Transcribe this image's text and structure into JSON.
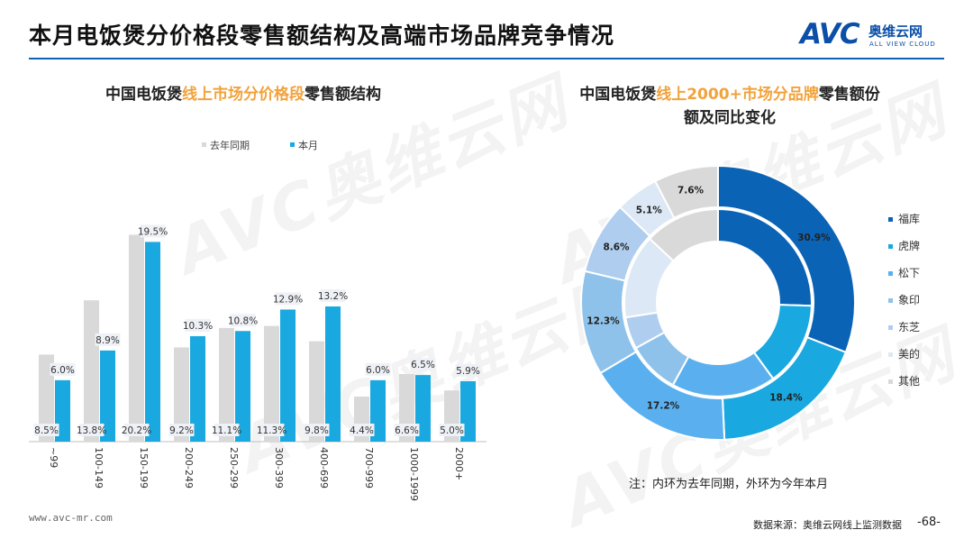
{
  "slide": {
    "title": "本月电饭煲分价格段零售额结构及高端市场品牌竞争情况",
    "logo_text": "AVC",
    "logo_cn": "奥维云网",
    "logo_en": "ALL VIEW CLOUD",
    "footer_url": "www.avc-mr.com",
    "footer_source": "数据来源：奥维云网线上监测数据",
    "page": "-68-",
    "watermark_text": "AVC奥维云网",
    "accent_color": "#0b63b6",
    "highlight_color": "#f2a23a"
  },
  "chart_data": [
    {
      "type": "bar",
      "title_pre": "中国电饭煲",
      "title_hl": "线上市场分价格段",
      "title_post": "零售额结构",
      "categories": [
        "~99",
        "100-149",
        "150-199",
        "200-249",
        "250-299",
        "300-399",
        "400-699",
        "700-999",
        "1000-1999",
        "2000+"
      ],
      "series": [
        {
          "name": "去年同期",
          "color": "#d9d9d9",
          "values": [
            8.5,
            13.8,
            20.2,
            9.2,
            11.1,
            11.3,
            9.8,
            4.4,
            6.6,
            5.0
          ]
        },
        {
          "name": "本月",
          "color": "#1aa8e0",
          "values": [
            6.0,
            8.9,
            19.5,
            10.3,
            10.8,
            12.9,
            13.2,
            6.0,
            6.5,
            5.9
          ]
        }
      ],
      "unit": "%",
      "ylim": [
        0,
        22
      ],
      "legend_position": "top-left"
    },
    {
      "type": "pie",
      "variant": "donut",
      "title_line1_pre": "中国电饭煲",
      "title_line1_hl": "线上2000+市场分品牌",
      "title_line1_post": "零售额份",
      "title_line2": "额及同比变化",
      "categories": [
        "福库",
        "虎牌",
        "松下",
        "象印",
        "东芝",
        "美的",
        "其他"
      ],
      "colors": [
        "#0b63b6",
        "#1aa8e0",
        "#5ab0ef",
        "#8ec2ea",
        "#aecdef",
        "#dce8f5",
        "#d9d9d9"
      ],
      "outer_ring_label": "本月",
      "inner_ring_label": "去年同期",
      "outer_values": [
        30.9,
        18.4,
        17.2,
        12.3,
        8.6,
        5.1,
        7.6
      ],
      "inner_values": [
        25.5,
        14.5,
        18.0,
        9.0,
        5.5,
        14.5,
        13.0
      ],
      "note": "注：内环为去年同期，外环为今年本月",
      "legend_position": "right"
    }
  ]
}
